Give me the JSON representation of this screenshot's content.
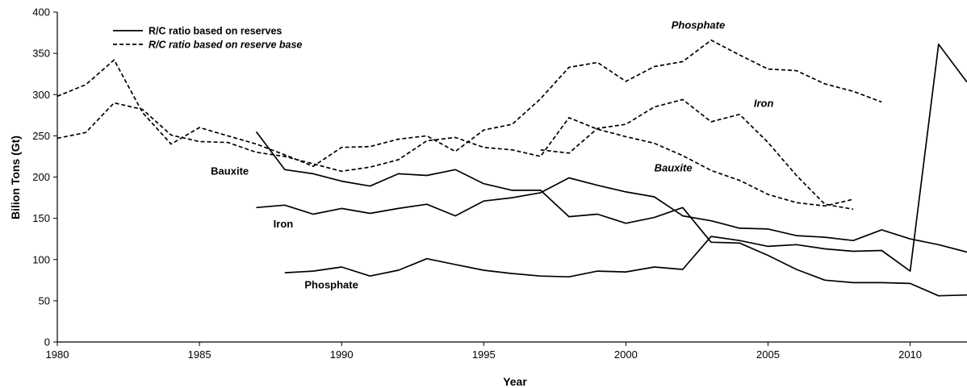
{
  "chart_data": {
    "type": "line",
    "xlabel": "Year",
    "ylabel": "Bilion Tons (Gt)",
    "xlim": [
      1980,
      2012
    ],
    "ylim": [
      0,
      400
    ],
    "x_ticks": [
      1980,
      1985,
      1990,
      1995,
      2000,
      2005,
      2010
    ],
    "y_ticks": [
      0,
      50,
      100,
      150,
      200,
      250,
      300,
      350,
      400
    ],
    "grid": false,
    "legend_position": "top-left",
    "legend": [
      {
        "label": "R/C ratio based on reserves",
        "style": "solid"
      },
      {
        "label": "R/C ratio based on reserve base",
        "style": "dashed"
      }
    ],
    "series": [
      {
        "style": "solid",
        "label_ref": "Bauxite",
        "x": [
          1987,
          1988,
          1989,
          1990,
          1991,
          1992,
          1993,
          1994,
          1995,
          1996,
          1997,
          1998,
          1999,
          2000,
          2001,
          2002,
          2003,
          2004,
          2005,
          2006,
          2007,
          2008,
          2009,
          2010,
          2011,
          2012
        ],
        "y": [
          255,
          209,
          204,
          195,
          189,
          204,
          202,
          209,
          192,
          184,
          184,
          152,
          155,
          144,
          151,
          163,
          121,
          120,
          105,
          88,
          75,
          72,
          72,
          71,
          56,
          57
        ]
      },
      {
        "style": "solid",
        "label_ref": "Iron",
        "x": [
          1987,
          1988,
          1989,
          1990,
          1991,
          1992,
          1993,
          1994,
          1995,
          1996,
          1997,
          1998,
          1999,
          2000,
          2001,
          2002,
          2003,
          2004,
          2005,
          2006,
          2007,
          2008,
          2009,
          2010,
          2011,
          2012
        ],
        "y": [
          163,
          166,
          155,
          162,
          156,
          162,
          167,
          153,
          171,
          175,
          181,
          199,
          190,
          182,
          176,
          153,
          147,
          138,
          137,
          129,
          127,
          123,
          136,
          125,
          118,
          109
        ]
      },
      {
        "style": "solid",
        "label_ref": "Phosphate",
        "x": [
          1988,
          1989,
          1990,
          1991,
          1992,
          1993,
          1994,
          1995,
          1996,
          1997,
          1998,
          1999,
          2000,
          2001,
          2002,
          2003,
          2004,
          2005,
          2006,
          2007,
          2008,
          2009,
          2010,
          2011,
          2012
        ],
        "y": [
          84,
          86,
          91,
          80,
          87,
          101,
          94,
          87,
          83,
          80,
          79,
          86,
          85,
          91,
          88,
          128,
          123,
          116,
          118,
          113,
          110,
          111,
          86,
          361,
          315
        ]
      },
      {
        "style": "dashed",
        "label_ref": "Phosphate",
        "x": [
          1980,
          1981,
          1982,
          1983,
          1984,
          1985,
          1986,
          1987,
          1988,
          1989,
          1990,
          1991,
          1992,
          1993,
          1994,
          1995,
          1996,
          1997,
          1998,
          1999,
          2000,
          2001,
          2002,
          2003,
          2004,
          2005,
          2006,
          2007,
          2008,
          2009
        ],
        "y": [
          298,
          312,
          342,
          278,
          240,
          260,
          250,
          240,
          227,
          213,
          236,
          237,
          246,
          250,
          231,
          257,
          264,
          295,
          333,
          339,
          316,
          334,
          340,
          366,
          348,
          331,
          329,
          313,
          304,
          291
        ]
      },
      {
        "style": "dashed",
        "label_ref": "Bauxite",
        "x": [
          1980,
          1981,
          1982,
          1983,
          1984,
          1985,
          1986,
          1987,
          1988,
          1989,
          1990,
          1991,
          1992,
          1993,
          1994,
          1995,
          1996,
          1997,
          1998,
          1999,
          2000,
          2001,
          2002,
          2003,
          2004,
          2005,
          2006,
          2007,
          2008
        ],
        "y": [
          247,
          254,
          290,
          282,
          251,
          243,
          242,
          230,
          225,
          216,
          207,
          212,
          221,
          244,
          248,
          236,
          233,
          225,
          272,
          258,
          249,
          241,
          226,
          208,
          196,
          179,
          169,
          165,
          173
        ]
      },
      {
        "style": "dashed",
        "label_ref": "Iron",
        "x": [
          1997,
          1998,
          1999,
          2000,
          2001,
          2002,
          2003,
          2004,
          2005,
          2006,
          2007,
          2008
        ],
        "y": [
          233,
          229,
          259,
          264,
          285,
          294,
          267,
          276,
          242,
          202,
          167,
          161
        ]
      }
    ],
    "annotations": [
      {
        "text": "Bauxite",
        "x": 1985.4,
        "y": 203,
        "italic": false
      },
      {
        "text": "Iron",
        "x": 1987.6,
        "y": 139,
        "italic": false
      },
      {
        "text": "Phosphate",
        "x": 1988.7,
        "y": 65,
        "italic": false
      },
      {
        "text": "Phosphate",
        "x": 2001.6,
        "y": 380,
        "italic": true
      },
      {
        "text": "Iron",
        "x": 2004.5,
        "y": 285,
        "italic": true
      },
      {
        "text": "Bauxite",
        "x": 2001.0,
        "y": 207,
        "italic": true
      }
    ]
  }
}
